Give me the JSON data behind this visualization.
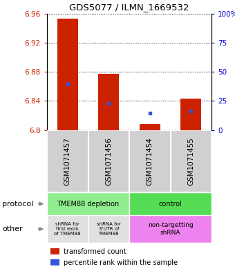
{
  "title": "GDS5077 / ILMN_1669532",
  "samples": [
    "GSM1071457",
    "GSM1071456",
    "GSM1071454",
    "GSM1071455"
  ],
  "red_values": [
    6.953,
    6.877,
    6.808,
    6.843
  ],
  "red_bottoms": [
    6.8,
    6.8,
    6.8,
    6.8
  ],
  "blue_values": [
    6.863,
    6.837,
    6.823,
    6.826
  ],
  "ylim": [
    6.8,
    6.96
  ],
  "yticks_left": [
    6.8,
    6.84,
    6.88,
    6.92,
    6.96
  ],
  "yticks_right": [
    0,
    25,
    50,
    75,
    100
  ],
  "ytick_labels_left": [
    "6.8",
    "6.84",
    "6.88",
    "6.92",
    "6.96"
  ],
  "ytick_labels_right": [
    "0",
    "25",
    "50",
    "75",
    "100%"
  ],
  "protocol_labels": [
    "TMEM88 depletion",
    "control"
  ],
  "protocol_colors": [
    "#90EE90",
    "#55DD55"
  ],
  "other_labels": [
    "shRNA for\nfirst exon\nof TMEM88",
    "shRNA for\n3'UTR of\nTMEM88",
    "non-targetting\nshRNA"
  ],
  "other_colors": [
    "#E0E0E0",
    "#E0E0E0",
    "#EE82EE"
  ],
  "sample_box_color": "#D0D0D0",
  "bar_width": 0.5,
  "red_color": "#CC2200",
  "blue_color": "#3355DD",
  "bg_color": "#FFFFFF",
  "label_color_left": "#CC2200",
  "label_color_right": "#0000CC",
  "arrow_color": "#888888"
}
